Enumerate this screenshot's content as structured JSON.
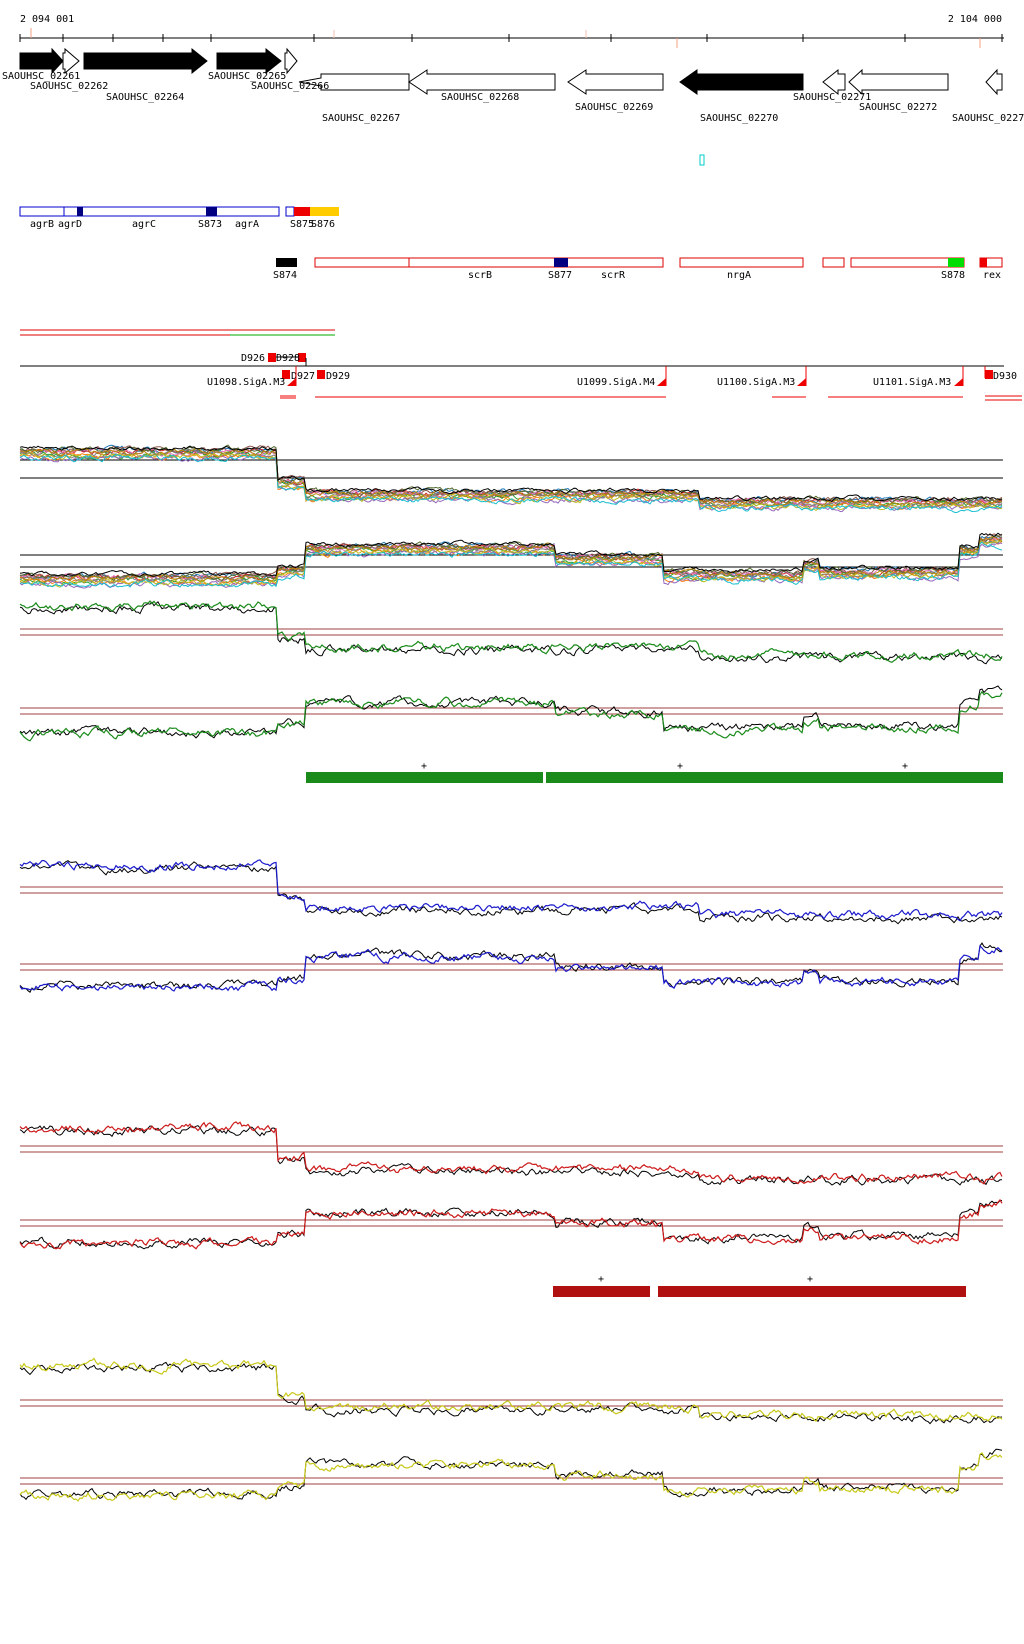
{
  "ruler": {
    "start_label": "2 094 001",
    "end_label": "2 104 000"
  },
  "genes": [
    {
      "name": "SAOUHSC_02261",
      "strand": "+",
      "filled": true
    },
    {
      "name": "SAOUHSC_02262",
      "strand": "+",
      "filled": false
    },
    {
      "name": "SAOUHSC_02264",
      "strand": "+",
      "filled": true
    },
    {
      "name": "SAOUHSC_02265",
      "strand": "+",
      "filled": true
    },
    {
      "name": "SAOUHSC_02266",
      "strand": "+",
      "filled": false
    },
    {
      "name": "SAOUHSC_02267",
      "strand": "-",
      "filled": false
    },
    {
      "name": "SAOUHSC_02268",
      "strand": "-",
      "filled": false
    },
    {
      "name": "SAOUHSC_02269",
      "strand": "-",
      "filled": false
    },
    {
      "name": "SAOUHSC_02270",
      "strand": "-",
      "filled": true
    },
    {
      "name": "SAOUHSC_02271",
      "strand": "-",
      "filled": false
    },
    {
      "name": "SAOUHSC_02272",
      "strand": "-",
      "filled": false
    },
    {
      "name": "SAOUHSC_0227",
      "strand": "-",
      "filled": false
    }
  ],
  "plus_strand_features": [
    "agrB",
    "agrD",
    "agrC",
    "S873",
    "agrA",
    "S875",
    "S876"
  ],
  "minus_strand_features": [
    "S874",
    "scrB",
    "S877",
    "scrR",
    "nrgA",
    "S878",
    "rex"
  ],
  "feature_colors": {
    "plus_outline": "#0000cc",
    "minus_outline": "#dd0000",
    "small_rna_blue": "#000080",
    "S875": "#ee0000",
    "S876": "#ffcc00",
    "S874": "#000000",
    "S878": "#00dd00",
    "rex_box": "#ee0000"
  },
  "promoters": {
    "upstream_boxes": [
      "D926",
      "D928",
      "D927",
      "D929",
      "D930"
    ],
    "sigma_sites": [
      "U1098.SigA.M3",
      "U1099.SigA.M4",
      "U1100.SigA.M3",
      "U1101.SigA.M3"
    ]
  },
  "segment_marker": "+",
  "tracks": {
    "overlay_colors": [
      "#1f77b4",
      "#d62728",
      "#2ca02c",
      "#ff7f0e",
      "#9467bd",
      "#8c564b",
      "#e377c2",
      "#7f7f7f",
      "#bcbd22",
      "#17becf",
      "#556b2f",
      "#b8860b"
    ],
    "green": "#1a8a1a",
    "blue": "#1a1acc",
    "red": "#cc1a1a",
    "yellow": "#c8c81a",
    "reference_line": "#a04040"
  }
}
